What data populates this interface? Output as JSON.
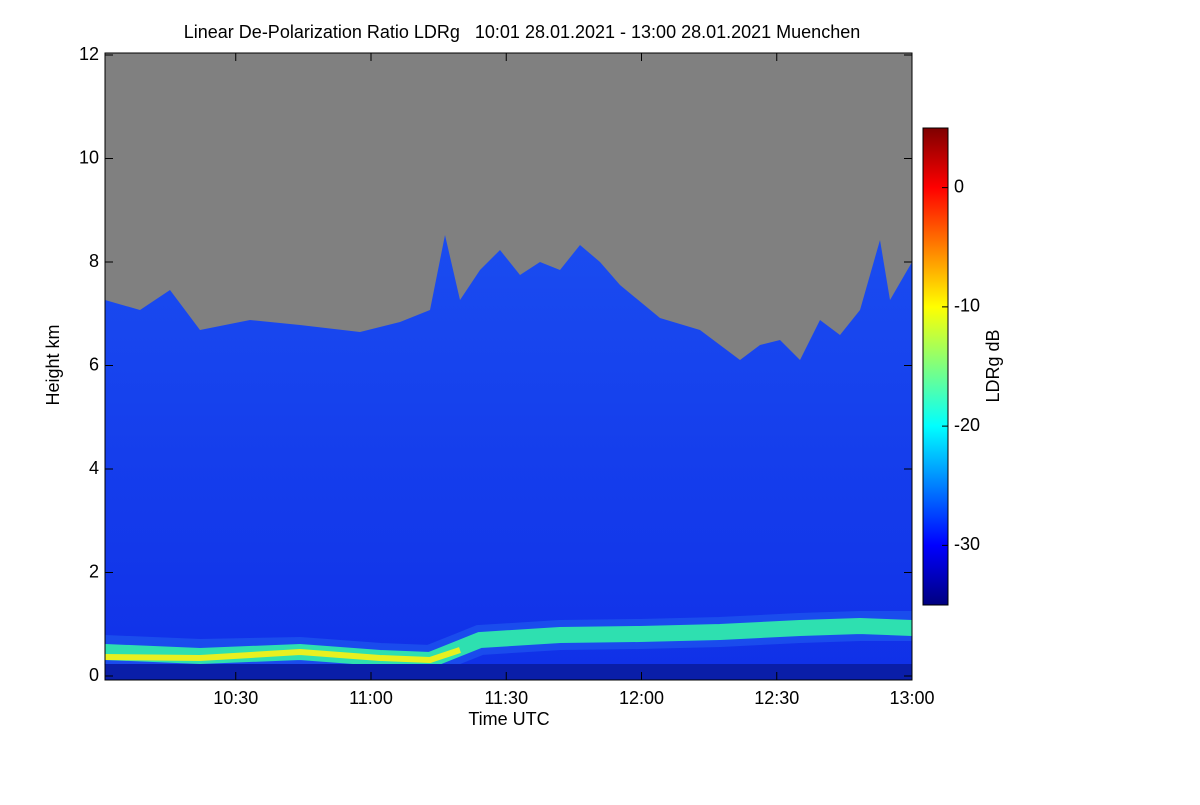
{
  "chart_data": {
    "type": "heatmap",
    "title": "Linear De-Polarization Ratio LDRg   10:01 28.01.2021 - 13:00 28.01.2021 Muenchen",
    "xlabel": "Time UTC",
    "ylabel": "Height km",
    "xlim": [
      601,
      780
    ],
    "xticks": [
      {
        "value": 630,
        "label": "10:30"
      },
      {
        "value": 660,
        "label": "11:00"
      },
      {
        "value": 690,
        "label": "11:30"
      },
      {
        "value": 720,
        "label": "12:00"
      },
      {
        "value": 750,
        "label": "12:30"
      },
      {
        "value": 780,
        "label": "13:00"
      }
    ],
    "ylim": [
      0,
      12
    ],
    "yticks": [
      0,
      2,
      4,
      6,
      8,
      10,
      12
    ],
    "colorbar": {
      "label": "LDRg dB",
      "lim": [
        -35,
        5
      ],
      "ticks": [
        0,
        -10,
        -20,
        -30
      ],
      "colormap": [
        "#00007f",
        "#0000ff",
        "#007fff",
        "#00ffff",
        "#7fff7f",
        "#ffff00",
        "#ff7f00",
        "#ff0000",
        "#7f0000"
      ]
    }
  }
}
